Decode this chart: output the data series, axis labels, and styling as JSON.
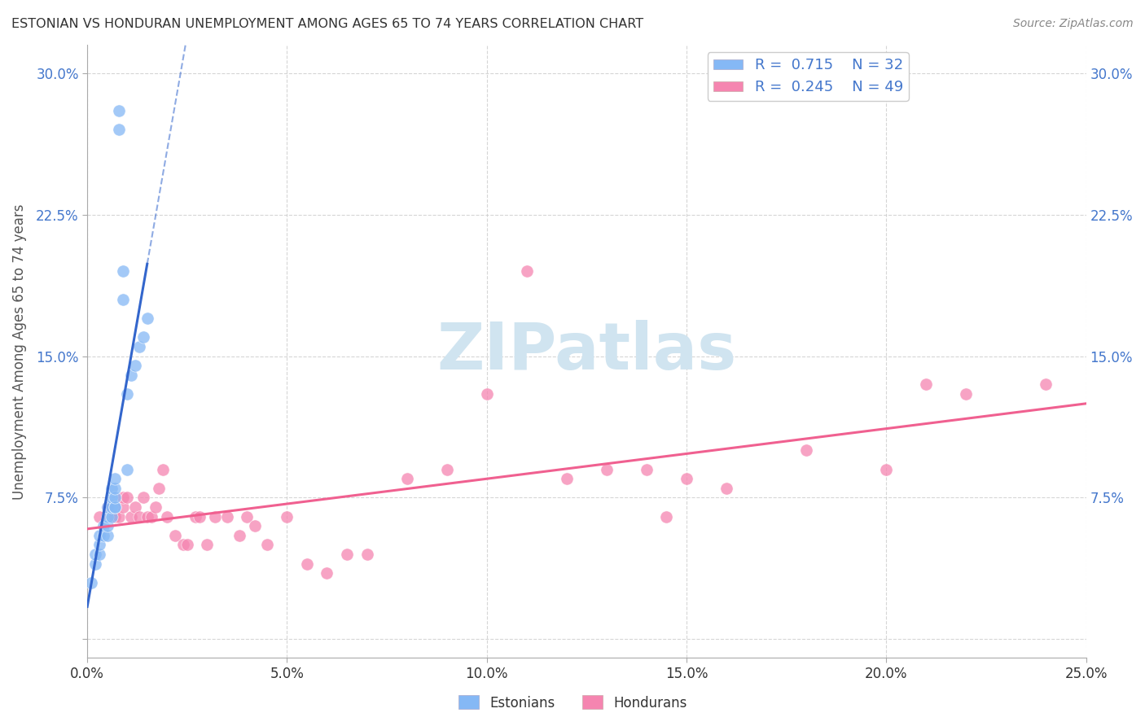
{
  "title": "ESTONIAN VS HONDURAN UNEMPLOYMENT AMONG AGES 65 TO 74 YEARS CORRELATION CHART",
  "source": "Source: ZipAtlas.com",
  "ylabel": "Unemployment Among Ages 65 to 74 years",
  "xlim": [
    0.0,
    0.25
  ],
  "ylim": [
    -0.01,
    0.315
  ],
  "xtick_vals": [
    0.0,
    0.05,
    0.1,
    0.15,
    0.2,
    0.25
  ],
  "xtick_labels": [
    "0.0%",
    "5.0%",
    "10.0%",
    "15.0%",
    "20.0%",
    "25.0%"
  ],
  "ytick_vals": [
    0.0,
    0.075,
    0.15,
    0.225,
    0.3
  ],
  "ytick_labels": [
    "",
    "7.5%",
    "15.0%",
    "22.5%",
    "30.0%"
  ],
  "estonian_color": "#85b8f5",
  "honduran_color": "#f585b0",
  "estonian_line_color": "#3366cc",
  "honduran_line_color": "#f06090",
  "background_color": "#ffffff",
  "grid_color": "#cccccc",
  "watermark_text": "ZIPatlas",
  "watermark_color": "#d0e4f0",
  "axis_label_color": "#4477cc",
  "estonian_x": [
    0.001,
    0.002,
    0.002,
    0.003,
    0.003,
    0.003,
    0.004,
    0.004,
    0.005,
    0.005,
    0.005,
    0.005,
    0.006,
    0.006,
    0.006,
    0.006,
    0.007,
    0.007,
    0.007,
    0.007,
    0.007,
    0.008,
    0.008,
    0.009,
    0.009,
    0.01,
    0.01,
    0.011,
    0.012,
    0.013,
    0.014,
    0.015
  ],
  "estonian_y": [
    0.03,
    0.04,
    0.045,
    0.045,
    0.05,
    0.055,
    0.055,
    0.06,
    0.055,
    0.06,
    0.065,
    0.07,
    0.065,
    0.07,
    0.075,
    0.08,
    0.07,
    0.07,
    0.075,
    0.08,
    0.085,
    0.27,
    0.28,
    0.18,
    0.195,
    0.09,
    0.13,
    0.14,
    0.145,
    0.155,
    0.16,
    0.17
  ],
  "honduran_x": [
    0.003,
    0.005,
    0.007,
    0.008,
    0.009,
    0.009,
    0.01,
    0.011,
    0.012,
    0.013,
    0.014,
    0.015,
    0.016,
    0.017,
    0.018,
    0.019,
    0.02,
    0.022,
    0.024,
    0.025,
    0.027,
    0.028,
    0.03,
    0.032,
    0.035,
    0.038,
    0.04,
    0.042,
    0.045,
    0.05,
    0.055,
    0.06,
    0.065,
    0.07,
    0.08,
    0.09,
    0.1,
    0.11,
    0.12,
    0.13,
    0.14,
    0.145,
    0.15,
    0.16,
    0.18,
    0.2,
    0.21,
    0.22,
    0.24
  ],
  "honduran_y": [
    0.065,
    0.07,
    0.065,
    0.065,
    0.07,
    0.075,
    0.075,
    0.065,
    0.07,
    0.065,
    0.075,
    0.065,
    0.065,
    0.07,
    0.08,
    0.09,
    0.065,
    0.055,
    0.05,
    0.05,
    0.065,
    0.065,
    0.05,
    0.065,
    0.065,
    0.055,
    0.065,
    0.06,
    0.05,
    0.065,
    0.04,
    0.035,
    0.045,
    0.045,
    0.085,
    0.09,
    0.13,
    0.195,
    0.085,
    0.09,
    0.09,
    0.065,
    0.085,
    0.08,
    0.1,
    0.09,
    0.135,
    0.13,
    0.135
  ]
}
